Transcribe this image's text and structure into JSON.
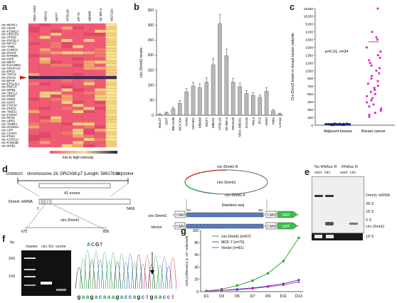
{
  "panel_letters": {
    "a": "a",
    "b": "b",
    "c": "c",
    "d": "d",
    "e": "e",
    "f": "f",
    "g": "g"
  },
  "panel_a": {
    "columns": [
      "MDA-1833",
      "MB231",
      "MCF7",
      "HTB126",
      "ZR-75",
      "MB468",
      "SK-BR-3",
      "MCF10A"
    ],
    "genes": [
      "circ-MKNK1",
      "circ-ADAR",
      "circ-KCNK1A",
      "circ-UBE2D2",
      "circ-ATXN1",
      "circ-PAPOLA",
      "circ-NFAT2",
      "circ-TAM1",
      "circ-SUMO2",
      "circ-STAT3",
      "circ-NTRMN",
      "circ-HIPE",
      "circ-MEST",
      "circ-KIAA0564",
      "circ-NDUFA10",
      "circ-ERC2",
      "circ-TSC22",
      "circ-Dnmt1",
      "circ-BFAR",
      "circ-EPS15L1",
      "circ-RNF13",
      "circ-NIPBL",
      "circ-TMCC1",
      "circ-RNMT",
      "circ-SRRS",
      "circ-USP3",
      "circ-COX14",
      "circ-PHF21",
      "circ-TM2D1",
      "circ-FOXK2",
      "circ-RFX4",
      "circ-UBR2",
      "circ-TAMR4",
      "circ-SCNN1A",
      "circ-APP",
      "circ-ACSF2",
      "circ-POLE",
      "circ-CLNS1A",
      "circ-FAM13B",
      "circ-WSB1"
    ],
    "legend": "low to high intensity",
    "colors": {
      "low": "#f25a74",
      "high": "#f5e68a",
      "dark": "#3b2a55",
      "mid": "#e8a06a"
    }
  },
  "panel_b": {
    "chart_data": {
      "type": "bar",
      "ylabel": "circ-Dnmt1 levels",
      "ylim": [
        0,
        350
      ],
      "yticks": [
        0,
        50,
        100,
        150,
        200,
        250,
        300,
        350
      ],
      "categories": [
        "HaCaT",
        "293T",
        "BEAS2B",
        "MCF10A",
        "Jurkat",
        "HUVEC",
        "MB468",
        "MCF7",
        "MB231",
        "HTB126",
        "SK-BR-3",
        "SNU449",
        "MDA-MB231",
        "DU145",
        "HeLa",
        "PC3",
        "H460",
        "Hela",
        "LnCap"
      ],
      "values": [
        3,
        8,
        22,
        40,
        78,
        97,
        92,
        110,
        168,
        305,
        198,
        110,
        95,
        72,
        66,
        60,
        80,
        15,
        5
      ],
      "errors": [
        2,
        3,
        5,
        8,
        10,
        12,
        12,
        14,
        20,
        30,
        22,
        12,
        12,
        10,
        9,
        8,
        12,
        4,
        2
      ],
      "bar_color": "#b8b8b8"
    }
  },
  "panel_c": {
    "chart_data": {
      "type": "scatter",
      "ylabel": "Circ-Dnmt1 levels in breast cancer patients",
      "annotation": "p=0.01, n=34",
      "yticks": [
        "0",
        "150",
        "300",
        "450",
        "600",
        "750",
        "900",
        "1050",
        "1200",
        "1350",
        "1500",
        "1650",
        "2150",
        "5150",
        "10150",
        "15150"
      ],
      "categories": [
        "Adjacent tissues",
        "Breast cancer"
      ],
      "series": [
        {
          "name": "Adjacent tissues",
          "color": "#1a237e",
          "values": [
            8,
            12,
            15,
            20,
            10,
            5,
            18,
            22,
            14,
            9,
            11,
            25,
            30,
            7,
            16,
            19,
            13,
            6,
            24,
            17,
            21,
            4,
            28,
            10,
            12,
            15,
            8,
            20,
            23,
            11,
            9,
            14,
            18,
            26
          ]
        },
        {
          "name": "Breast cancer",
          "color": "#e020c8",
          "values": [
            15150,
            2150,
            1800,
            1650,
            1500,
            1420,
            1350,
            1300,
            1250,
            1200,
            1150,
            1100,
            1050,
            1000,
            950,
            900,
            850,
            800,
            760,
            720,
            680,
            640,
            600,
            560,
            520,
            480,
            440,
            400,
            360,
            320,
            280,
            240,
            200,
            160
          ]
        }
      ]
    }
  },
  "panel_d": {
    "coord_start": "10306021",
    "coord_end": "10133404",
    "chrom_label": "chromosome 19, GRCh38.p7 (Length: 58617616 )",
    "exons_label": "41 exons",
    "mrna_label": "Dnmt1 mRNA",
    "mrna_start": "1",
    "mrna_end": "5458",
    "circ_label": "circ-Dnmt1",
    "circ_start": "672",
    "circ_end": "826",
    "primer_r": "circ-Dnmt1-R",
    "primer_f": "circ-Dnmt1-F",
    "circ_ring": "circ-Dnmt1",
    "random_seq": "Random seq",
    "row1": "circ-Dnmt1",
    "row2": "Vector",
    "cmv": "CMV",
    "sa": "SA",
    "sd": "SD",
    "gfp": "GFP"
  },
  "panel_e": {
    "no_rnase": "No RNAse R",
    "rnase": "RNAse R",
    "lanes": [
      "vect",
      "circ",
      "vect",
      "circ"
    ],
    "labels": [
      "Dnmt1 mRNA",
      "28 S",
      "18 S",
      "5 S",
      "circ-Dnmt1",
      "18 S"
    ]
  },
  "panel_f": {
    "bp": "bp",
    "lanes": [
      "marker",
      "circ-Dn",
      "vector"
    ],
    "ladder": [
      "200",
      "100"
    ],
    "seq_top": "ACGT",
    "sequence": "gaagacaaagaccagctgaacct"
  },
  "panel_g": {
    "chart_data": {
      "type": "line",
      "ylabel": "Cell proliferation (x 10⁴ cells/well)",
      "ylim": [
        0,
        100
      ],
      "yticks": [
        0,
        20,
        40,
        60,
        80,
        100
      ],
      "categories": [
        "D1",
        "D3",
        "D5",
        "D7",
        "D9",
        "D11",
        "D13"
      ],
      "series": [
        {
          "name": "circ-Dnmt1 (n=57)",
          "color": "#1f9e1f",
          "values": [
            1,
            4,
            10,
            18,
            30,
            50,
            88
          ]
        },
        {
          "name": "MCF-7 (n=75)",
          "color": "#2f3fbf",
          "values": [
            1,
            2,
            4,
            6,
            9,
            13,
            19
          ]
        },
        {
          "name": "Vector (n=81)",
          "color": "#d020c0",
          "values": [
            1,
            2,
            3,
            5,
            8,
            11,
            16
          ]
        }
      ]
    }
  }
}
